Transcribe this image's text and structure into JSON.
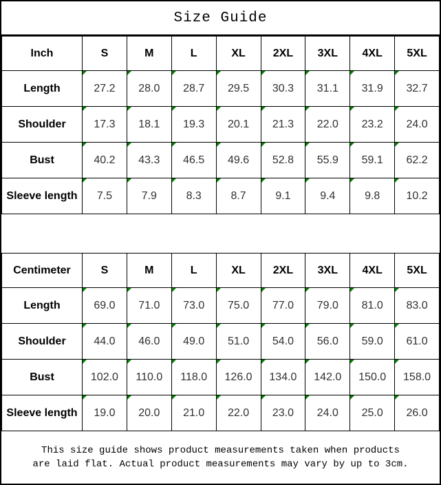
{
  "title": "Size Guide",
  "colors": {
    "border": "#000000",
    "title_text": "#000000",
    "header_text": "#000000",
    "value_text": "#303030",
    "corner_marker_green": "#008000",
    "background": "#ffffff"
  },
  "tables": [
    {
      "unit_label": "Inch",
      "columns": [
        "S",
        "M",
        "L",
        "XL",
        "2XL",
        "3XL",
        "4XL",
        "5XL"
      ],
      "rows": [
        {
          "label": "Length",
          "values": [
            "27.2",
            "28.0",
            "28.7",
            "29.5",
            "30.3",
            "31.1",
            "31.9",
            "32.7"
          ]
        },
        {
          "label": "Shoulder",
          "values": [
            "17.3",
            "18.1",
            "19.3",
            "20.1",
            "21.3",
            "22.0",
            "23.2",
            "24.0"
          ]
        },
        {
          "label": "Bust",
          "values": [
            "40.2",
            "43.3",
            "46.5",
            "49.6",
            "52.8",
            "55.9",
            "59.1",
            "62.2"
          ]
        },
        {
          "label": "Sleeve length",
          "values": [
            "7.5",
            "7.9",
            "8.3",
            "8.7",
            "9.1",
            "9.4",
            "9.8",
            "10.2"
          ]
        }
      ]
    },
    {
      "unit_label": "Centimeter",
      "columns": [
        "S",
        "M",
        "L",
        "XL",
        "2XL",
        "3XL",
        "4XL",
        "5XL"
      ],
      "rows": [
        {
          "label": "Length",
          "values": [
            "69.0",
            "71.0",
            "73.0",
            "75.0",
            "77.0",
            "79.0",
            "81.0",
            "83.0"
          ]
        },
        {
          "label": "Shoulder",
          "values": [
            "44.0",
            "46.0",
            "49.0",
            "51.0",
            "54.0",
            "56.0",
            "59.0",
            "61.0"
          ]
        },
        {
          "label": "Bust",
          "values": [
            "102.0",
            "110.0",
            "118.0",
            "126.0",
            "134.0",
            "142.0",
            "150.0",
            "158.0"
          ]
        },
        {
          "label": "Sleeve length",
          "values": [
            "19.0",
            "20.0",
            "21.0",
            "22.0",
            "23.0",
            "24.0",
            "25.0",
            "26.0"
          ]
        }
      ]
    }
  ],
  "note_lines": [
    "This size guide shows product measurements taken when products",
    "are laid flat. Actual product measurements may vary by up to 3cm."
  ]
}
